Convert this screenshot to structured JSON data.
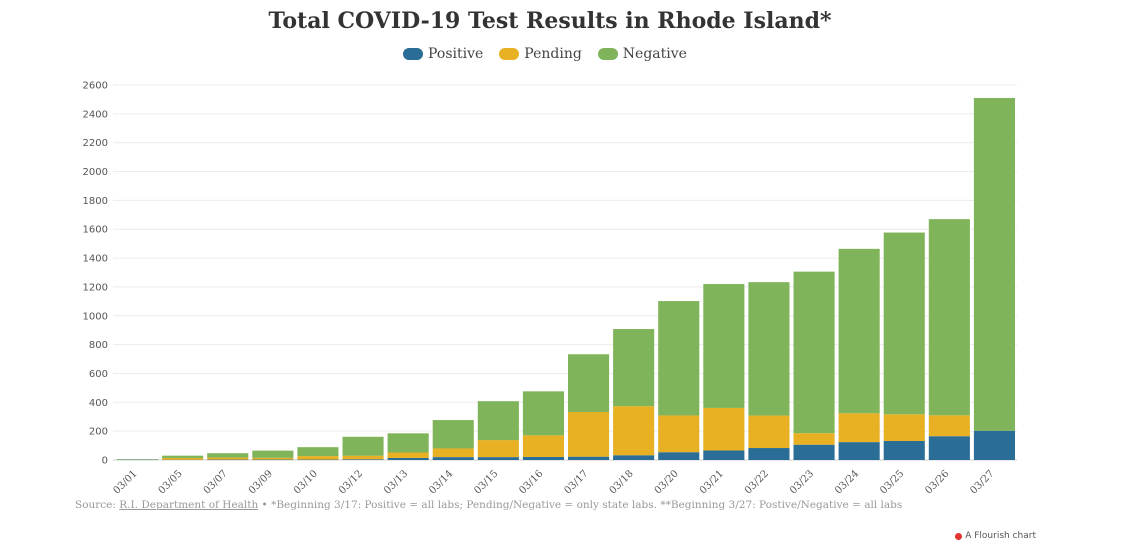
{
  "title": "Total COVID-19 Test Results in Rhode Island*",
  "legend": [
    {
      "label": "Positive",
      "color": "#2a6d96"
    },
    {
      "label": "Pending",
      "color": "#e8b023"
    },
    {
      "label": "Negative",
      "color": "#80b45a"
    }
  ],
  "footer": {
    "source_prefix": "Source: ",
    "source_link": "R.I. Department of Health",
    "note": " • *Beginning 3/17: Positive = all labs; Pending/Negative = only state labs. **Beginning 3/27: Postive/Negative = all labs"
  },
  "flourish_label": "A Flourish chart",
  "chart_data": {
    "type": "bar",
    "stacked": true,
    "title": "Total COVID-19 Test Results in Rhode Island*",
    "xlabel": "",
    "ylabel": "",
    "ylim": [
      0,
      2600
    ],
    "yticks": [
      0,
      200,
      400,
      600,
      800,
      1000,
      1200,
      1400,
      1600,
      1800,
      2000,
      2200,
      2400,
      2600
    ],
    "grid": true,
    "legend_placement": "top-center",
    "categories": [
      "03/01",
      "03/05",
      "03/07",
      "03/09",
      "03/10",
      "03/12",
      "03/13",
      "03/14",
      "03/15",
      "03/16",
      "03/17",
      "03/18",
      "03/20",
      "03/21",
      "03/22",
      "03/23",
      "03/24",
      "03/25",
      "03/26",
      "03/27"
    ],
    "series": [
      {
        "name": "Positive",
        "color": "#2a6d96",
        "values": [
          2,
          2,
          3,
          3,
          3,
          5,
          14,
          20,
          20,
          21,
          23,
          33,
          54,
          66,
          83,
          106,
          124,
          132,
          165,
          203
        ]
      },
      {
        "name": "Pending",
        "color": "#e8b023",
        "values": [
          0,
          12,
          14,
          12,
          24,
          24,
          38,
          60,
          118,
          150,
          310,
          340,
          255,
          295,
          225,
          80,
          200,
          185,
          145,
          0
        ]
      },
      {
        "name": "Negative",
        "color": "#80b45a",
        "values": [
          4,
          16,
          30,
          50,
          62,
          132,
          133,
          197,
          270,
          305,
          400,
          535,
          793,
          859,
          925,
          1120,
          1140,
          1260,
          1360,
          2307
        ]
      }
    ]
  }
}
